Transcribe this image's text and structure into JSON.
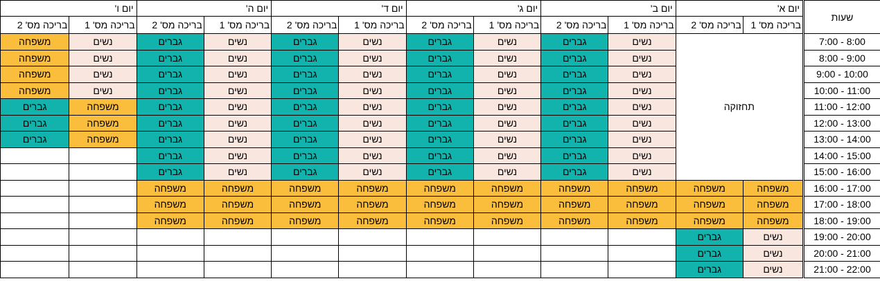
{
  "hours_header": "שעות",
  "hours": [
    "7:00 - 8:00",
    "8:00 - 9:00",
    "9:00 - 10:00",
    "10:00 - 11:00",
    "11:00 - 12:00",
    "12:00 - 13:00",
    "13:00 - 14:00",
    "14:00 - 15:00",
    "15:00 - 16:00",
    "16:00 - 17:00",
    "17:00 - 18:00",
    "18:00 - 19:00",
    "19:00 - 20:00",
    "20:00 - 21:00",
    "21:00 - 22:00"
  ],
  "days": [
    "יום א'",
    "יום ב'",
    "יום ג'",
    "יום ד'",
    "יום ה'",
    "יום ו'"
  ],
  "pool_headers": [
    "בריכה מס' 1",
    "בריכה מס' 2"
  ],
  "maintenance_label": "תחזוקה",
  "labels": {
    "women": "נשים",
    "men": "גברים",
    "family": "משפחה"
  },
  "colors": {
    "women": "#f8e6df",
    "men": "#13b3ad",
    "family": "#fbbd3c"
  }
}
